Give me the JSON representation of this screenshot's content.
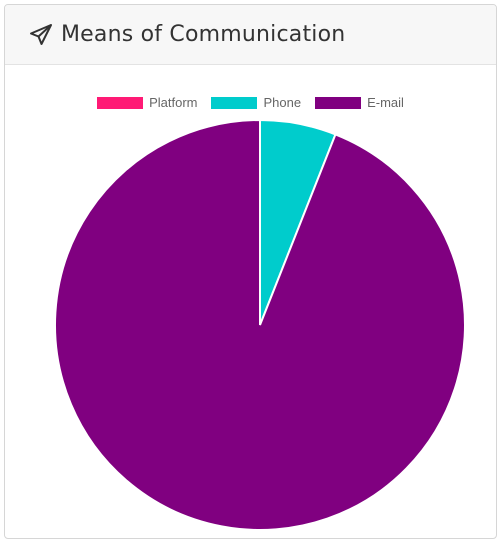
{
  "panel": {
    "title": "Means of Communication",
    "icon": "paper-plane-icon"
  },
  "chart_data": {
    "type": "pie",
    "title": "",
    "series": [
      {
        "name": "Platform",
        "value": 0,
        "color": "#ff1a75"
      },
      {
        "name": "Phone",
        "value": 6,
        "color": "#00cccc"
      },
      {
        "name": "E-mail",
        "value": 94,
        "color": "#800080"
      }
    ],
    "legend_position": "top",
    "slice_border_color": "#ffffff"
  }
}
